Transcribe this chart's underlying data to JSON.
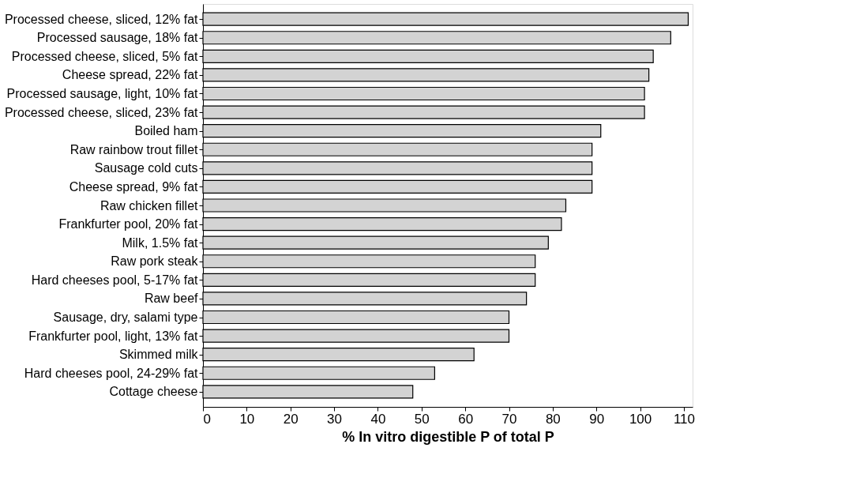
{
  "chart_data": {
    "type": "bar",
    "orientation": "horizontal",
    "xlabel": "% In vitro digestible P of total P",
    "categories": [
      "Processed cheese, sliced, 12% fat",
      "Processed sausage, 18% fat",
      "Processed cheese, sliced, 5% fat",
      "Cheese spread, 22% fat",
      "Processed sausage, light, 10% fat",
      "Processed cheese, sliced, 23% fat",
      "Boiled ham",
      "Raw rainbow trout fillet",
      "Sausage cold cuts",
      "Cheese spread, 9% fat",
      "Raw chicken fillet",
      "Frankfurter pool, 20% fat",
      "Milk, 1.5% fat",
      "Raw pork steak",
      "Hard cheeses pool, 5-17% fat",
      "Raw beef",
      "Sausage, dry, salami type",
      "Frankfurter pool, light, 13% fat",
      "Skimmed milk",
      "Hard cheeses pool, 24-29% fat",
      "Cottage cheese"
    ],
    "values": [
      111,
      107,
      103,
      102,
      101,
      101,
      91,
      89,
      89,
      89,
      83,
      82,
      79,
      76,
      76,
      74,
      70,
      70,
      62,
      53,
      48
    ],
    "color": "#d3d3d3",
    "xlim": [
      0,
      112
    ],
    "xticks": [
      0,
      10,
      20,
      30,
      40,
      50,
      60,
      70,
      80,
      90,
      100,
      110
    ],
    "grid": false
  }
}
